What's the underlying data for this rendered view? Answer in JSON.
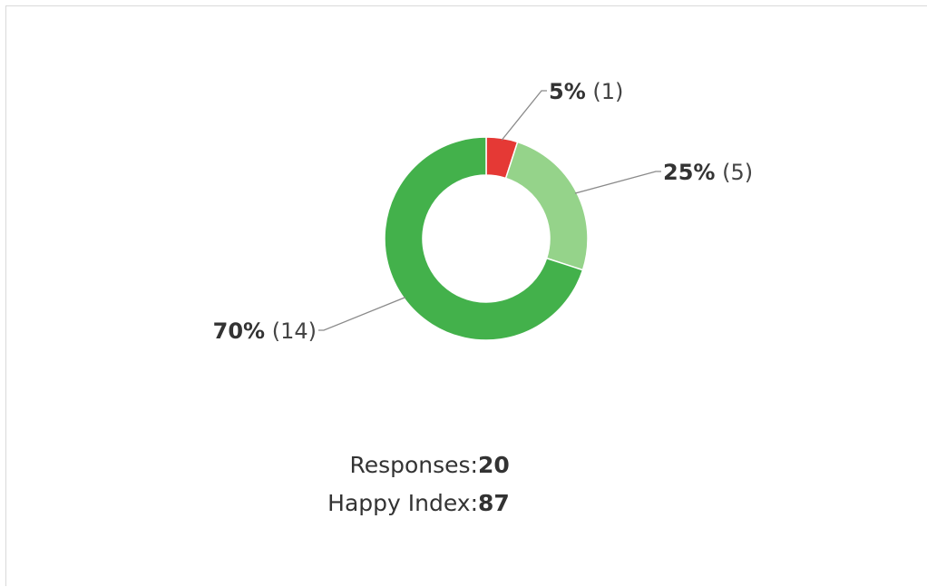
{
  "chart_data": {
    "type": "pie",
    "donut": true,
    "slices": [
      {
        "percent": 5,
        "count": 1,
        "percent_label": "5%",
        "count_label": "(1)",
        "color": "#e53935"
      },
      {
        "percent": 25,
        "count": 5,
        "percent_label": "25%",
        "count_label": "(5)",
        "color": "#95d38a"
      },
      {
        "percent": 70,
        "count": 14,
        "percent_label": "70%",
        "count_label": "(14)",
        "color": "#43b14b"
      }
    ],
    "start_angle_deg": 0,
    "direction": "clockwise"
  },
  "stats": {
    "responses_label": "Responses:",
    "responses_value": "20",
    "happy_index_label": "Happy Index:",
    "happy_index_value": "87"
  }
}
